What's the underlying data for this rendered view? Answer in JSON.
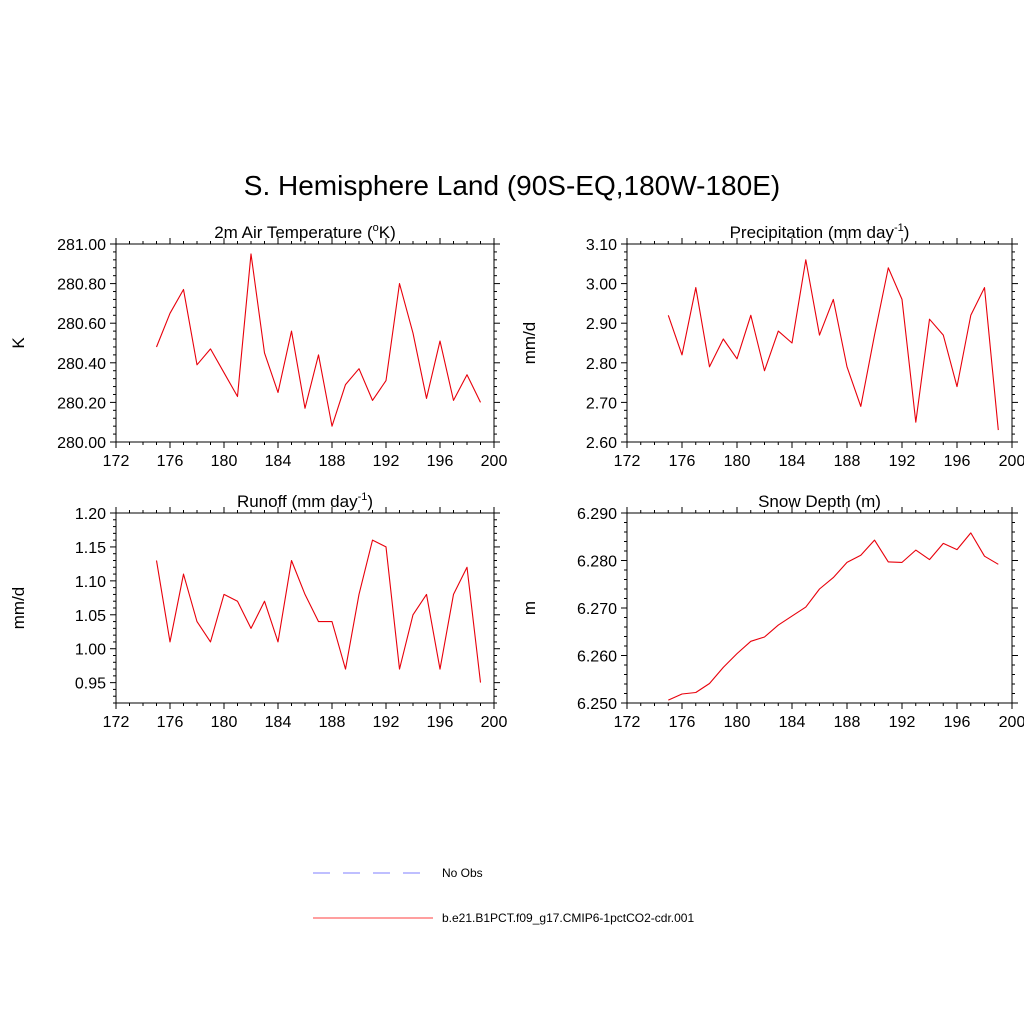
{
  "title": "S. Hemisphere Land (90S-EQ,180W-180E)",
  "legend": [
    {
      "label": "No Obs",
      "color": "#9999ff",
      "style": "dashed"
    },
    {
      "label": "b.e21.B1PCT.f09_g17.CMIP6-1pctCO2-cdr.001",
      "color": "#ff6666",
      "style": "solid"
    }
  ],
  "chart_data": [
    {
      "type": "line",
      "title": "2m Air Temperature (",
      "title_sup": "o",
      "title_post": "K)",
      "ylabel": "K",
      "xlim": [
        172,
        200
      ],
      "ylim": [
        280.0,
        281.0
      ],
      "xticks": [
        172,
        176,
        180,
        184,
        188,
        192,
        196,
        200
      ],
      "yticks": [
        280.0,
        280.2,
        280.4,
        280.6,
        280.8,
        281.0
      ],
      "ytick_labels": [
        "280.00",
        "280.20",
        "280.40",
        "280.60",
        "280.80",
        "281.00"
      ],
      "line_color": "#e8000b",
      "x": [
        175,
        176,
        177,
        178,
        179,
        180,
        181,
        182,
        183,
        184,
        185,
        186,
        187,
        188,
        189,
        190,
        191,
        192,
        193,
        194,
        195,
        196,
        197,
        198,
        199
      ],
      "values": [
        280.48,
        280.65,
        280.77,
        280.39,
        280.47,
        280.35,
        280.23,
        280.95,
        280.45,
        280.25,
        280.56,
        280.17,
        280.44,
        280.08,
        280.29,
        280.37,
        280.21,
        280.31,
        280.8,
        280.55,
        280.22,
        280.51,
        280.21,
        280.34,
        280.2
      ]
    },
    {
      "type": "line",
      "title": "Precipitation (mm day",
      "title_sup": "-1",
      "title_post": ")",
      "ylabel": "mm/d",
      "xlim": [
        172,
        200
      ],
      "ylim": [
        2.6,
        3.1
      ],
      "xticks": [
        172,
        176,
        180,
        184,
        188,
        192,
        196,
        200
      ],
      "yticks": [
        2.6,
        2.7,
        2.8,
        2.9,
        3.0,
        3.1
      ],
      "ytick_labels": [
        "2.60",
        "2.70",
        "2.80",
        "2.90",
        "3.00",
        "3.10"
      ],
      "line_color": "#e8000b",
      "x": [
        175,
        176,
        177,
        178,
        179,
        180,
        181,
        182,
        183,
        184,
        185,
        186,
        187,
        188,
        189,
        190,
        191,
        192,
        193,
        194,
        195,
        196,
        197,
        198,
        199
      ],
      "values": [
        2.92,
        2.82,
        2.99,
        2.79,
        2.86,
        2.81,
        2.92,
        2.78,
        2.88,
        2.85,
        3.06,
        2.87,
        2.96,
        2.79,
        2.69,
        2.87,
        3.04,
        2.96,
        2.65,
        2.91,
        2.87,
        2.74,
        2.92,
        2.99,
        2.63
      ]
    },
    {
      "type": "line",
      "title": "Runoff (mm day",
      "title_sup": "-1",
      "title_post": ")",
      "ylabel": "mm/d",
      "xlim": [
        172,
        200
      ],
      "ylim": [
        0.92,
        1.2
      ],
      "xticks": [
        172,
        176,
        180,
        184,
        188,
        192,
        196,
        200
      ],
      "yticks": [
        0.95,
        1.0,
        1.05,
        1.1,
        1.15,
        1.2
      ],
      "ytick_labels": [
        "0.95",
        "1.00",
        "1.05",
        "1.10",
        "1.15",
        "1.20"
      ],
      "line_color": "#e8000b",
      "x": [
        175,
        176,
        177,
        178,
        179,
        180,
        181,
        182,
        183,
        184,
        185,
        186,
        187,
        188,
        189,
        190,
        191,
        192,
        193,
        194,
        195,
        196,
        197,
        198,
        199
      ],
      "values": [
        1.13,
        1.01,
        1.11,
        1.04,
        1.01,
        1.08,
        1.07,
        1.03,
        1.07,
        1.01,
        1.13,
        1.08,
        1.04,
        1.04,
        0.97,
        1.08,
        1.16,
        1.15,
        0.97,
        1.05,
        1.08,
        0.97,
        1.08,
        1.12,
        0.95
      ]
    },
    {
      "type": "line",
      "title": "Snow Depth (m)",
      "title_sup": "",
      "title_post": "",
      "ylabel": "m",
      "xlim": [
        172,
        200
      ],
      "ylim": [
        6.25,
        6.29
      ],
      "xticks": [
        172,
        176,
        180,
        184,
        188,
        192,
        196,
        200
      ],
      "yticks": [
        6.25,
        6.26,
        6.27,
        6.28,
        6.29
      ],
      "ytick_labels": [
        "6.250",
        "6.260",
        "6.270",
        "6.280",
        "6.290"
      ],
      "line_color": "#e8000b",
      "x": [
        175,
        176,
        177,
        178,
        179,
        180,
        181,
        182,
        183,
        184,
        185,
        186,
        187,
        188,
        189,
        190,
        191,
        192,
        193,
        194,
        195,
        196,
        197,
        198,
        199
      ],
      "values": [
        6.2506,
        6.2519,
        6.2522,
        6.2541,
        6.2575,
        6.2604,
        6.263,
        6.2639,
        6.2664,
        6.2683,
        6.2702,
        6.274,
        6.2764,
        6.2796,
        6.2811,
        6.2843,
        6.2797,
        6.2796,
        6.2822,
        6.2802,
        6.2836,
        6.2823,
        6.2858,
        6.2809,
        6.2792
      ]
    }
  ]
}
